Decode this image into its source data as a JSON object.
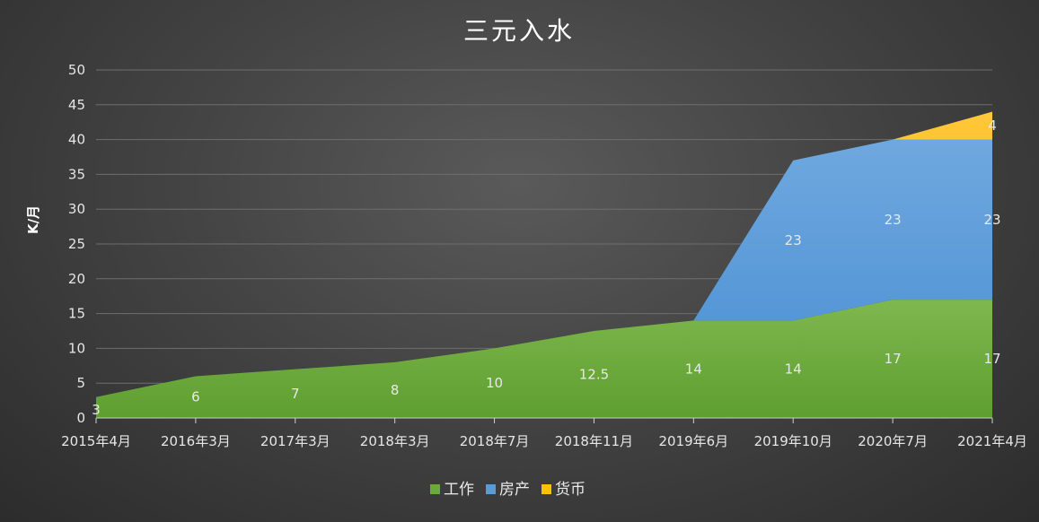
{
  "chart_data": {
    "type": "area",
    "stacked": true,
    "title": "三元入水",
    "ylabel": "K/月",
    "xlabel": "",
    "ylim": [
      0,
      50
    ],
    "yticks": [
      0,
      5,
      10,
      15,
      20,
      25,
      30,
      35,
      40,
      45,
      50
    ],
    "grid": true,
    "legend_position": "bottom",
    "categories": [
      "2015年4月",
      "2016年3月",
      "2017年3月",
      "2018年3月",
      "2018年7月",
      "2018年11月",
      "2019年6月",
      "2019年10月",
      "2020年7月",
      "2021年4月"
    ],
    "series": [
      {
        "name": "工作",
        "color": "#6aaa3a",
        "values": [
          3,
          6,
          7,
          8,
          10,
          12.5,
          14,
          14,
          17,
          17
        ],
        "labels": [
          "3",
          "6",
          "7",
          "8",
          "10",
          "12.5",
          "14",
          "14",
          "17",
          "17"
        ]
      },
      {
        "name": "房产",
        "color": "#5b9bd5",
        "values": [
          0,
          0,
          0,
          0,
          0,
          0,
          0,
          23,
          23,
          23
        ],
        "labels": [
          "",
          "",
          "",
          "",
          "",
          "",
          "",
          "23",
          "23",
          "23"
        ]
      },
      {
        "name": "货币",
        "color": "#ffc000",
        "values": [
          0,
          0,
          0,
          0,
          0,
          0,
          0,
          0,
          0,
          4
        ],
        "labels": [
          "",
          "",
          "",
          "",
          "",
          "",
          "",
          "",
          "",
          "4"
        ]
      }
    ]
  }
}
